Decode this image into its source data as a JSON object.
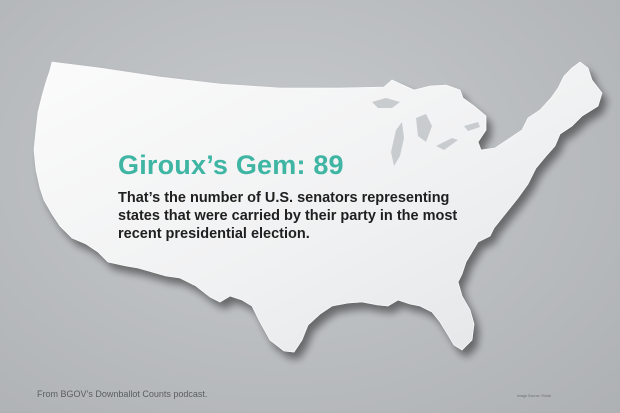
{
  "headline": "Giroux’s Gem: 89",
  "body": "That’s the number of U.S. senators representing states that were carried by their party in the most recent presidential election.",
  "footer": {
    "source": "From BGOV’s Downballot Counts podcast.",
    "image_credit": "Image Source: iStock"
  },
  "colors": {
    "background": "#b9bcbf",
    "map": "#f1f2f3",
    "headline": "#3fb5a4",
    "body": "#1f1f1f"
  }
}
